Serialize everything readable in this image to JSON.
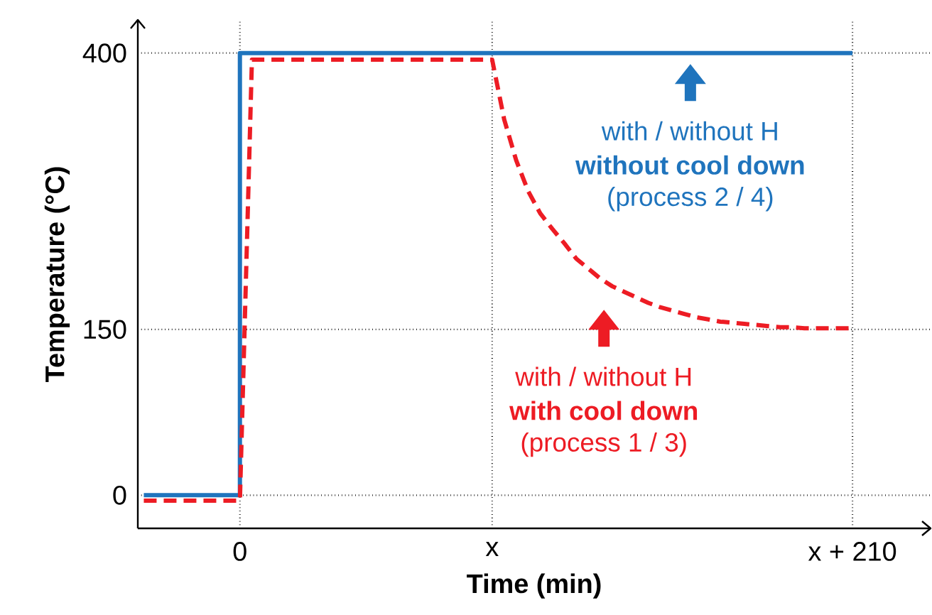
{
  "chart_data": {
    "type": "line",
    "xlabel": "Time (min)",
    "ylabel": "Temperature (°C)",
    "categories": [
      null,
      null,
      null,
      null,
      null,
      null,
      null,
      null,
      "0",
      null,
      null,
      null,
      null,
      null,
      null,
      null,
      null,
      null,
      null,
      null,
      null,
      null,
      null,
      null,
      null,
      null,
      null,
      null,
      null,
      "x",
      null,
      null,
      null,
      null,
      null,
      null,
      null,
      null,
      null,
      null,
      null,
      null,
      null,
      null,
      null,
      null,
      null,
      null,
      null,
      null,
      null,
      null,
      null,
      null,
      null,
      null,
      null,
      null,
      null,
      "x + 210",
      null,
      null,
      null,
      null,
      null,
      null
    ],
    "ylim": [
      -30,
      430
    ],
    "yticks": [
      0,
      150,
      400
    ],
    "grid": true,
    "line_style": "solid",
    "series": [
      {
        "type": "step",
        "color": "#1f74bd",
        "values": [
          0,
          0,
          0,
          0,
          0,
          0,
          0,
          0,
          400,
          400,
          400,
          400,
          400,
          400,
          400,
          400,
          400,
          400,
          400,
          400,
          400,
          400,
          400,
          400,
          400,
          400,
          400,
          400,
          400,
          400,
          400,
          400,
          400,
          400,
          400,
          400,
          400,
          400,
          400,
          400,
          400,
          400,
          400,
          400,
          400,
          400,
          400,
          400,
          400,
          400,
          400,
          400,
          400,
          400,
          400,
          400,
          400,
          400,
          400,
          400,
          null,
          null,
          null,
          null,
          null,
          null
        ]
      },
      {
        "color": "#ed1c24",
        "line_style": "dashed",
        "values": [
          -5,
          -5,
          -5,
          -5,
          -5,
          -5,
          -5,
          -5,
          -5,
          394,
          394,
          394,
          394,
          394,
          394,
          394,
          394,
          394,
          394,
          394,
          394,
          394,
          394,
          394,
          394,
          394,
          394,
          394,
          394,
          394,
          340,
          303,
          275,
          255,
          241,
          228,
          214,
          205,
          196,
          189,
          184,
          179,
          174,
          170,
          167,
          164,
          161,
          159,
          157,
          156,
          155,
          154,
          153,
          152,
          152,
          151,
          151,
          151,
          151,
          151,
          null,
          null,
          null,
          null,
          null,
          null
        ]
      }
    ],
    "annotations": [
      "with / without H",
      "without cool down",
      "(process 2 / 4)",
      "with / without H",
      "with cool down",
      "(process 1 / 3)"
    ]
  }
}
